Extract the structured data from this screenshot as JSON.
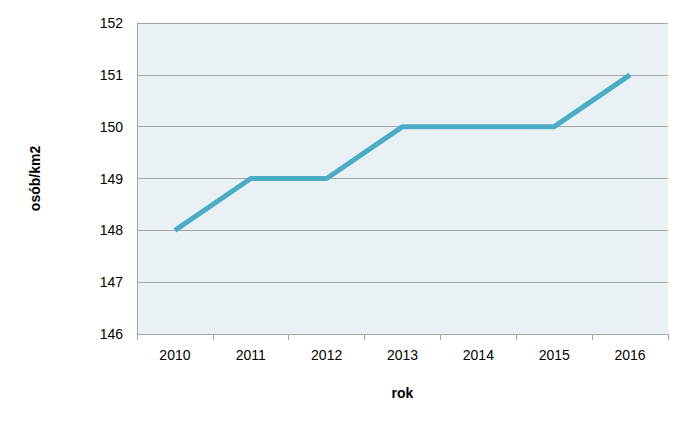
{
  "chart_data": {
    "type": "line",
    "x_label": "rok",
    "y_label": "osób/km2",
    "categories": [
      "2010",
      "2011",
      "2012",
      "2013",
      "2014",
      "2015",
      "2016"
    ],
    "values": [
      148,
      149,
      149,
      150,
      150,
      150,
      151
    ],
    "color": "#4bacc6",
    "ylim": [
      146,
      152
    ],
    "yticks": [
      146,
      147,
      148,
      149,
      150,
      151,
      152
    ],
    "grid": true,
    "marker": "none"
  }
}
